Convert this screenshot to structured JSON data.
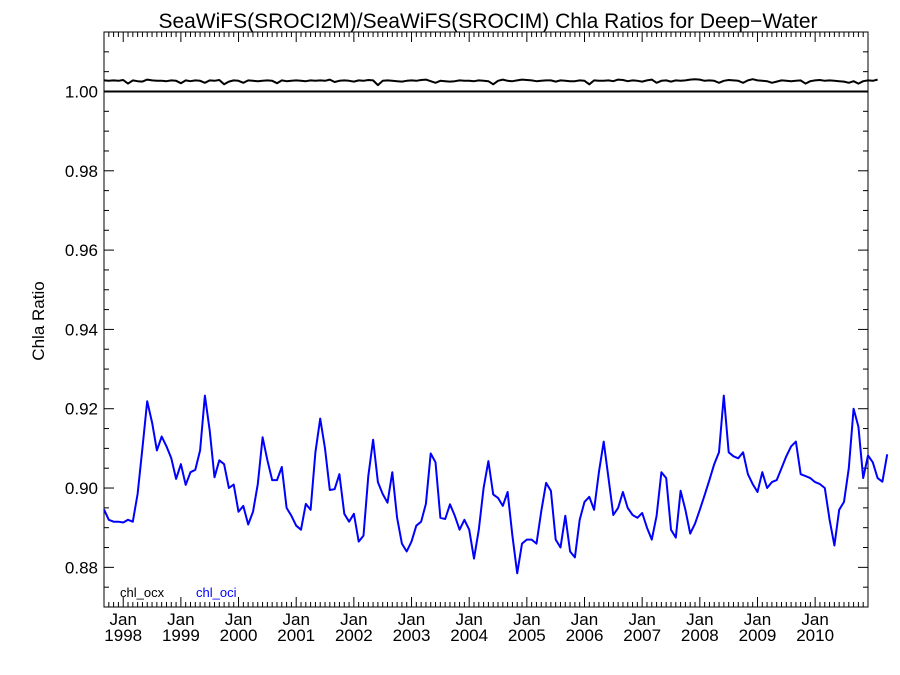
{
  "chart_data": {
    "type": "line",
    "title": "SeaWiFS(SROCI2M)/SeaWiFS(SROCIM)  Chla Ratios for Deep−Water",
    "ylabel": "Chla Ratio",
    "xlabel": "",
    "ylim": [
      0.87,
      1.015
    ],
    "xlim": [
      "1997-09",
      "2010-12"
    ],
    "grid": false,
    "legend_position": "bottom-left",
    "y_ticks": [
      "0.88",
      "0.90",
      "0.92",
      "0.94",
      "0.96",
      "0.98",
      "1.00"
    ],
    "x_ticks": [
      {
        "top": "Jan",
        "bottom": "1998",
        "date": "1998-01"
      },
      {
        "top": "Jan",
        "bottom": "1999",
        "date": "1999-01"
      },
      {
        "top": "Jan",
        "bottom": "2000",
        "date": "2000-01"
      },
      {
        "top": "Jan",
        "bottom": "2001",
        "date": "2001-01"
      },
      {
        "top": "Jan",
        "bottom": "2002",
        "date": "2002-01"
      },
      {
        "top": "Jan",
        "bottom": "2003",
        "date": "2003-01"
      },
      {
        "top": "Jan",
        "bottom": "2004",
        "date": "2004-01"
      },
      {
        "top": "Jan",
        "bottom": "2005",
        "date": "2005-01"
      },
      {
        "top": "Jan",
        "bottom": "2006",
        "date": "2006-01"
      },
      {
        "top": "Jan",
        "bottom": "2007",
        "date": "2007-01"
      },
      {
        "top": "Jan",
        "bottom": "2008",
        "date": "2008-01"
      },
      {
        "top": "Jan",
        "bottom": "2009",
        "date": "2009-01"
      },
      {
        "top": "Jan",
        "bottom": "2010",
        "date": "2010-01"
      }
    ],
    "reference_line": {
      "y": 1.0,
      "color": "#000000"
    },
    "series": [
      {
        "name": "chl_ocx",
        "color": "#000000",
        "x_start": "1997-09",
        "step": "monthly",
        "values": [
          1.0028,
          1.0027,
          1.0028,
          1.0027,
          1.0029,
          1.002,
          1.0028,
          1.0026,
          1.0025,
          1.003,
          1.0028,
          1.0027,
          1.0027,
          1.0026,
          1.0028,
          1.0027,
          1.0021,
          1.0028,
          1.0026,
          1.0028,
          1.0027,
          1.0022,
          1.0028,
          1.0027,
          1.0029,
          1.0018,
          1.0025,
          1.0028,
          1.0027,
          1.0022,
          1.0028,
          1.0027,
          1.0026,
          1.0027,
          1.0028,
          1.0027,
          1.0021,
          1.0028,
          1.0026,
          1.0027,
          1.0028,
          1.0027,
          1.0026,
          1.0028,
          1.0027,
          1.0028,
          1.0027,
          1.003,
          1.0024,
          1.0027,
          1.0028,
          1.0027,
          1.0025,
          1.0028,
          1.0027,
          1.0029,
          1.0028,
          1.0016,
          1.0027,
          1.0028,
          1.0027,
          1.0026,
          1.0025,
          1.0027,
          1.0028,
          1.0027,
          1.0029,
          1.003,
          1.0026,
          1.0022,
          1.0027,
          1.0026,
          1.0025,
          1.0026,
          1.0028,
          1.0027,
          1.0027,
          1.0026,
          1.0028,
          1.0027,
          1.0026,
          1.0018,
          1.0027,
          1.003,
          1.0027,
          1.0026,
          1.0028,
          1.003,
          1.0029,
          1.0028,
          1.0026,
          1.0027,
          1.0028,
          1.0028,
          1.0025,
          1.0028,
          1.0027,
          1.0026,
          1.0026,
          1.0028,
          1.0027,
          1.0018,
          1.0028,
          1.0027,
          1.0027,
          1.0028,
          1.0026,
          1.003,
          1.0029,
          1.0026,
          1.0028,
          1.0027,
          1.0025,
          1.0028,
          1.003,
          1.0022,
          1.0027,
          1.0028,
          1.0025,
          1.0028,
          1.0027,
          1.0028,
          1.003,
          1.0031,
          1.003,
          1.0027,
          1.0028,
          1.0027,
          1.0022,
          1.0027,
          1.0029,
          1.0028,
          1.0027,
          1.0022,
          1.0028,
          1.0031,
          1.0028,
          1.0027,
          1.0026,
          1.0022,
          1.0025,
          1.0028,
          1.0027,
          1.0026,
          1.0027,
          1.0028,
          1.002,
          1.0026,
          1.0028,
          1.0029,
          1.0027,
          1.0028,
          1.0027,
          1.0026,
          1.0025,
          1.0022,
          1.0026,
          1.002,
          1.0026,
          1.0028,
          1.0027,
          1.003
        ]
      },
      {
        "name": "chl_oci",
        "color": "#0000ff",
        "x_start": "1997-09",
        "step": "monthly",
        "values": [
          0.8946,
          0.892,
          0.8915,
          0.8915,
          0.8913,
          0.892,
          0.8915,
          0.8985,
          0.91,
          0.9219,
          0.9165,
          0.9095,
          0.913,
          0.9105,
          0.9075,
          0.9023,
          0.906,
          0.9008,
          0.904,
          0.9046,
          0.9095,
          0.9233,
          0.9145,
          0.9027,
          0.907,
          0.906,
          0.9,
          0.9009,
          0.894,
          0.8955,
          0.8908,
          0.894,
          0.901,
          0.9128,
          0.907,
          0.902,
          0.902,
          0.9053,
          0.895,
          0.893,
          0.8905,
          0.8895,
          0.896,
          0.8945,
          0.909,
          0.9175,
          0.91,
          0.8995,
          0.8997,
          0.9035,
          0.8935,
          0.8915,
          0.8935,
          0.8865,
          0.888,
          0.903,
          0.9122,
          0.9015,
          0.8985,
          0.8963,
          0.904,
          0.8925,
          0.886,
          0.884,
          0.8865,
          0.8905,
          0.8915,
          0.896,
          0.9087,
          0.9065,
          0.8925,
          0.8922,
          0.8959,
          0.893,
          0.8895,
          0.892,
          0.8895,
          0.8822,
          0.8895,
          0.9,
          0.9068,
          0.8984,
          0.8975,
          0.8955,
          0.899,
          0.888,
          0.8785,
          0.886,
          0.887,
          0.887,
          0.886,
          0.8942,
          0.9013,
          0.8993,
          0.887,
          0.885,
          0.893,
          0.884,
          0.8825,
          0.892,
          0.8965,
          0.8978,
          0.8945,
          0.904,
          0.9117,
          0.9025,
          0.8932,
          0.895,
          0.899,
          0.895,
          0.8932,
          0.8925,
          0.8937,
          0.89,
          0.887,
          0.893,
          0.904,
          0.9025,
          0.8895,
          0.8875,
          0.8993,
          0.8945,
          0.8885,
          0.891,
          0.8945,
          0.8982,
          0.902,
          0.906,
          0.909,
          0.9233,
          0.909,
          0.908,
          0.9075,
          0.909,
          0.9035,
          0.901,
          0.899,
          0.904,
          0.9,
          0.9015,
          0.902,
          0.905,
          0.908,
          0.9105,
          0.9117,
          0.9035,
          0.903,
          0.9025,
          0.9015,
          0.901,
          0.9,
          0.892,
          0.8855,
          0.8945,
          0.8965,
          0.905,
          0.92,
          0.9155,
          0.9025,
          0.9082,
          0.9065,
          0.9025,
          0.9016,
          0.9085
        ]
      }
    ]
  }
}
